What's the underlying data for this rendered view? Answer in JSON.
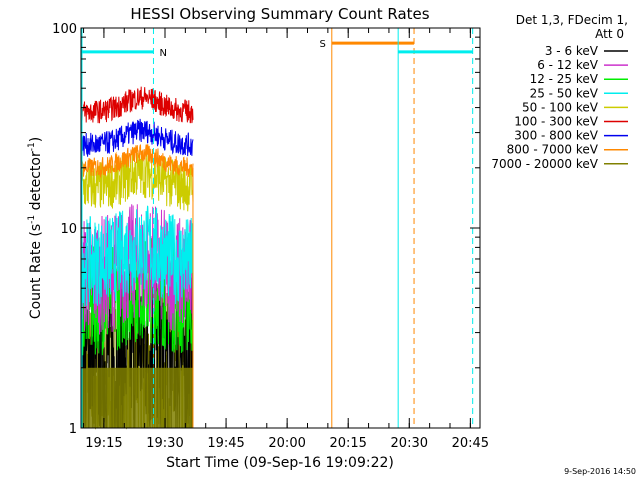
{
  "chart_data": {
    "type": "line",
    "title": "HESSI Observing Summary Count Rates",
    "xlabel": "Start Time (09-Sep-16 19:09:22)",
    "ylabel_main": "Count Rate (s",
    "ylabel_sup1": "-1",
    "ylabel_mid": " detector",
    "ylabel_sup2": "-1",
    "ylabel_end": ")",
    "yscale": "log",
    "ylim": [
      1,
      100
    ],
    "xlim_min": [
      0,
      98
    ],
    "x_ticks": [
      {
        "label": "19:15",
        "t": 5.63
      },
      {
        "label": "19:30",
        "t": 20.63
      },
      {
        "label": "19:45",
        "t": 35.63
      },
      {
        "label": "20:00",
        "t": 50.63
      },
      {
        "label": "20:15",
        "t": 65.63
      },
      {
        "label": "20:30",
        "t": 80.63
      },
      {
        "label": "20:45",
        "t": 95.63
      }
    ],
    "y_ticks": [
      {
        "label": "1",
        "v": 1
      },
      {
        "label": "10",
        "v": 10
      },
      {
        "label": "100",
        "v": 100
      }
    ],
    "legend_header": [
      "Det 1,3, FDecim 1,",
      "Att 0"
    ],
    "legend_position": "top-right, outside plot",
    "series": [
      {
        "name": "3 - 6 keV",
        "color": "#000000",
        "level": 2.2
      },
      {
        "name": "6 - 12 keV",
        "color": "#cc33cc",
        "level": 5.8
      },
      {
        "name": "12 - 25 keV",
        "color": "#00ee00",
        "level": 4.3
      },
      {
        "name": "25 - 50 keV",
        "color": "#00eeee",
        "level": 6.8
      },
      {
        "name": "50 - 100 keV",
        "color": "#cccc00",
        "level": 16
      },
      {
        "name": "100 - 300 keV",
        "color": "#dd0000",
        "level": 38
      },
      {
        "name": "300 - 800 keV",
        "color": "#0000ee",
        "level": 26
      },
      {
        "name": "800 - 7000 keV",
        "color": "#ff8800",
        "level": 20
      },
      {
        "name": "7000 - 20000 keV",
        "color": "#808000",
        "level": 1.6
      }
    ],
    "data_range_min": [
      0,
      27.5
    ],
    "annotations": [
      {
        "label": "N",
        "color": "#00eeee",
        "t0": 0,
        "t1": 17.8,
        "y": 76,
        "vline_t": 17.8,
        "vline_style": "dashed"
      },
      {
        "label": "S",
        "color": "#ff8800",
        "t0": 61.6,
        "t1": 81.8,
        "y": 84,
        "vline_t": 61.6,
        "vline_t_dashed": 81.8
      },
      {
        "label": "",
        "color": "#00eeee",
        "t0": 77.9,
        "t1": 96.2,
        "y": 76,
        "vline_t": 77.9,
        "vline_t_dashed": 96.2
      }
    ],
    "timestamp": "9-Sep-2016 14:50"
  }
}
